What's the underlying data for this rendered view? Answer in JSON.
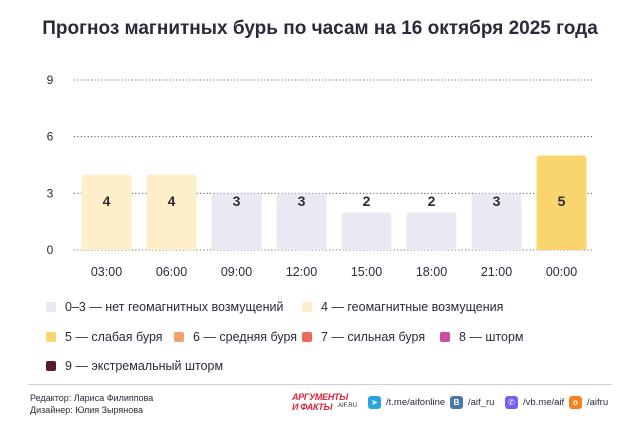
{
  "title": "Прогноз магнитных бурь по часам на 16 октября 2025 года",
  "chart_data": {
    "type": "bar",
    "categories": [
      "03:00",
      "06:00",
      "09:00",
      "12:00",
      "15:00",
      "18:00",
      "21:00",
      "00:00"
    ],
    "values": [
      4,
      4,
      3,
      3,
      2,
      2,
      3,
      5
    ],
    "yticks": [
      0,
      3,
      6,
      9
    ],
    "ylim": [
      0,
      9
    ],
    "grid": "horizontal dotted",
    "bar_colors": {
      "0-3": "#e8e9f3",
      "4": "#fdf0c8",
      "5": "#fad56f"
    }
  },
  "legend": [
    {
      "label": "0–3 — нет геомагнитных возмущений",
      "color": "#e8e9f3"
    },
    {
      "label": "4 — геомагнитные возмущения",
      "color": "#fdf0c8"
    },
    {
      "label": "5 — слабая буря",
      "color": "#fad56f"
    },
    {
      "label": "6 — средняя буря",
      "color": "#f3a06a"
    },
    {
      "label": "7 — сильная буря",
      "color": "#ec6a5c"
    },
    {
      "label": "8 — шторм",
      "color": "#c64f9e"
    },
    {
      "label": "9 — экстремальный шторм",
      "color": "#5c1a2e"
    }
  ],
  "footer": {
    "editor": "Редактор: Лариса Филиппова",
    "designer": "Дизайнер: Юлия Зырянова",
    "brand_line1": "АРГУМЕНТЫ",
    "brand_line2": "И ФАКТЫ",
    "brand_line3": "AIF.RU",
    "social": [
      {
        "icon": "telegram-icon",
        "glyph": "➤",
        "color": "#2aa3df",
        "label": "/t.me/aifonline"
      },
      {
        "icon": "vk-icon",
        "glyph": "B",
        "color": "#4a76a8",
        "label": "/aif_ru"
      },
      {
        "icon": "viber-icon",
        "glyph": "✆",
        "color": "#7360f2",
        "label": "/vb.me/aif"
      },
      {
        "icon": "ok-icon",
        "glyph": "о",
        "color": "#f58220",
        "label": "/aifru"
      }
    ]
  }
}
